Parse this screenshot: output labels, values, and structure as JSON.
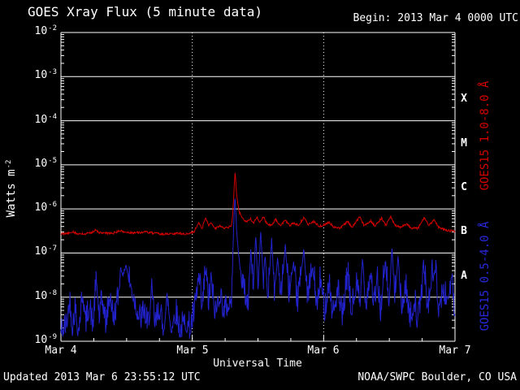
{
  "chart_data": {
    "type": "line",
    "title": "GOES Xray Flux (5 minute data)",
    "begin_label": "Begin: 2013 Mar 4 0000 UTC",
    "xlabel": "Universal Time",
    "ylabel": "Watts m^-2",
    "ylabel_base": "Watts m",
    "ylabel_exp": "-2",
    "y_scale": "log",
    "y_range": [
      1e-09,
      0.01
    ],
    "y_tick_exponents": [
      -2,
      -3,
      -4,
      -5,
      -6,
      -7,
      -8,
      -9
    ],
    "x_range_hours": [
      0,
      72
    ],
    "x_tick_hours": [
      0,
      24,
      48,
      72
    ],
    "x_tick_labels": [
      "Mar 4",
      "Mar 5",
      "Mar 6",
      "Mar 7"
    ],
    "dotted_gridline_hours": [
      24,
      48
    ],
    "minor_x_tick_hours": 6,
    "flare_class_letters": [
      "X",
      "M",
      "C",
      "B",
      "A"
    ],
    "colors": {
      "background": "#000000",
      "axis": "#ffffff",
      "text": "#ffffff"
    },
    "sample_interval_minutes": 5,
    "prng_seed": 42,
    "series": [
      {
        "key": "goes15-long",
        "name": "GOES15 1.0-8.0 Å",
        "color": "#d40000",
        "jitter_up": 0.025,
        "jitter_down": 0.025,
        "jitter_threshold": 1,
        "points": [
          [
            0,
            2.7e-07
          ],
          [
            1.5,
            2.8e-07
          ],
          [
            2.2,
            3.1e-07
          ],
          [
            3,
            2.7e-07
          ],
          [
            4.5,
            2.7e-07
          ],
          [
            5.5,
            2.9e-07
          ],
          [
            6.3,
            3.3e-07
          ],
          [
            7,
            2.9e-07
          ],
          [
            8,
            2.8e-07
          ],
          [
            9.5,
            2.8e-07
          ],
          [
            10.8,
            3.2e-07
          ],
          [
            11.5,
            3e-07
          ],
          [
            12.5,
            2.9e-07
          ],
          [
            14,
            2.9e-07
          ],
          [
            15.5,
            3e-07
          ],
          [
            17,
            2.8e-07
          ],
          [
            18.5,
            2.7e-07
          ],
          [
            20,
            2.7e-07
          ],
          [
            21.5,
            2.8e-07
          ],
          [
            23,
            2.7e-07
          ],
          [
            24.3,
            3e-07
          ],
          [
            25.2,
            5e-07
          ],
          [
            25.8,
            3.6e-07
          ],
          [
            26.4,
            6.3e-07
          ],
          [
            27.0,
            4.2e-07
          ],
          [
            27.4,
            5e-07
          ],
          [
            28.2,
            3.6e-07
          ],
          [
            29.0,
            4.2e-07
          ],
          [
            29.8,
            3.6e-07
          ],
          [
            30.5,
            3.8e-07
          ],
          [
            31.2,
            4.2e-07
          ],
          [
            31.55,
            1.5e-06
          ],
          [
            31.8,
            7.5e-06
          ],
          [
            32.1,
            2.2e-06
          ],
          [
            32.5,
            9e-07
          ],
          [
            33.2,
            6e-07
          ],
          [
            34.0,
            5e-07
          ],
          [
            34.6,
            6.2e-07
          ],
          [
            35.2,
            4.8e-07
          ],
          [
            35.8,
            6.5e-07
          ],
          [
            36.4,
            5e-07
          ],
          [
            37.0,
            6.8e-07
          ],
          [
            37.6,
            4.6e-07
          ],
          [
            38.5,
            4.2e-07
          ],
          [
            39.2,
            5.8e-07
          ],
          [
            40,
            4.2e-07
          ],
          [
            41,
            5.5e-07
          ],
          [
            41.8,
            4.2e-07
          ],
          [
            42.6,
            4.8e-07
          ],
          [
            43.4,
            4.2e-07
          ],
          [
            44.4,
            6.4e-07
          ],
          [
            45.2,
            4.4e-07
          ],
          [
            46.2,
            5.2e-07
          ],
          [
            47.2,
            4e-07
          ],
          [
            48.2,
            4.4e-07
          ],
          [
            49.0,
            5e-07
          ],
          [
            49.8,
            3.9e-07
          ],
          [
            51,
            3.7e-07
          ],
          [
            52.4,
            5.2e-07
          ],
          [
            53.2,
            3.8e-07
          ],
          [
            54.6,
            6.6e-07
          ],
          [
            55.4,
            4.2e-07
          ],
          [
            56.6,
            5.4e-07
          ],
          [
            57.4,
            4.1e-07
          ],
          [
            58.6,
            6.2e-07
          ],
          [
            59.4,
            4.2e-07
          ],
          [
            60.2,
            6.8e-07
          ],
          [
            61,
            4.3e-07
          ],
          [
            62,
            3.9e-07
          ],
          [
            63.2,
            4.6e-07
          ],
          [
            64,
            3.7e-07
          ],
          [
            65.2,
            3.6e-07
          ],
          [
            66.4,
            6.4e-07
          ],
          [
            67.2,
            4.2e-07
          ],
          [
            68.2,
            5.6e-07
          ],
          [
            69,
            3.9e-07
          ],
          [
            70,
            3.4e-07
          ],
          [
            71,
            3.2e-07
          ],
          [
            72,
            3.1e-07
          ]
        ]
      },
      {
        "key": "goes15-short",
        "name": "GOES15 0.5-4.0 Å",
        "color": "#2222cc",
        "jitter_up": 0.45,
        "jitter_down": 0.18,
        "jitter_threshold": 3e-08,
        "points": [
          [
            0,
            1.5e-09
          ],
          [
            1.0,
            2e-09
          ],
          [
            1.6,
            8e-09
          ],
          [
            2.1,
            1.8e-09
          ],
          [
            2.6,
            5e-09
          ],
          [
            3.2,
            1.5e-09
          ],
          [
            4.0,
            1.2e-08
          ],
          [
            4.5,
            2e-09
          ],
          [
            5.2,
            6e-09
          ],
          [
            5.8,
            1.8e-09
          ],
          [
            6.5,
            2.2e-08
          ],
          [
            7.0,
            3e-09
          ],
          [
            7.6,
            8e-09
          ],
          [
            8.2,
            2e-09
          ],
          [
            9.0,
            1.1e-08
          ],
          [
            9.6,
            2.5e-09
          ],
          [
            10.4,
            8e-09
          ],
          [
            10.9,
            4.5e-08
          ],
          [
            11.4,
            3e-08
          ],
          [
            11.9,
            5.5e-08
          ],
          [
            12.4,
            2.5e-08
          ],
          [
            13.0,
            1.2e-08
          ],
          [
            13.8,
            5e-09
          ],
          [
            14.6,
            2.5e-09
          ],
          [
            15.2,
            4.5e-09
          ],
          [
            15.8,
            1.8e-09
          ],
          [
            16.6,
            1e-08
          ],
          [
            17.2,
            2e-09
          ],
          [
            18.0,
            5e-09
          ],
          [
            18.6,
            1.6e-09
          ],
          [
            19.5,
            8e-09
          ],
          [
            20.1,
            1.8e-09
          ],
          [
            21.0,
            4e-09
          ],
          [
            21.8,
            1.5e-09
          ],
          [
            22.8,
            2.5e-09
          ],
          [
            23.6,
            1.6e-09
          ],
          [
            24.4,
            4e-09
          ],
          [
            25.2,
            2.6e-08
          ],
          [
            25.8,
            4e-09
          ],
          [
            26.4,
            4.2e-08
          ],
          [
            27.0,
            6e-09
          ],
          [
            27.4,
            2.2e-08
          ],
          [
            28.2,
            3.5e-09
          ],
          [
            29.0,
            1.1e-08
          ],
          [
            29.8,
            4e-09
          ],
          [
            30.6,
            6e-09
          ],
          [
            31.2,
            8e-09
          ],
          [
            31.55,
            4e-07
          ],
          [
            31.8,
            2.2e-06
          ],
          [
            32.1,
            3e-07
          ],
          [
            32.5,
            8e-08
          ],
          [
            33.0,
            2.5e-08
          ],
          [
            33.6,
            1e-08
          ],
          [
            34.2,
            6e-09
          ],
          [
            34.7,
            1.3e-07
          ],
          [
            35.1,
            1.2e-08
          ],
          [
            35.6,
            2.6e-07
          ],
          [
            36.0,
            1.5e-08
          ],
          [
            36.5,
            3.1e-07
          ],
          [
            37.0,
            2e-08
          ],
          [
            37.3,
            1e-07
          ],
          [
            37.8,
            9e-09
          ],
          [
            38.5,
            2.1e-07
          ],
          [
            39.0,
            1.2e-08
          ],
          [
            39.6,
            8e-08
          ],
          [
            40.2,
            8e-09
          ],
          [
            41.0,
            1.6e-07
          ],
          [
            41.6,
            1e-08
          ],
          [
            42.5,
            5.5e-08
          ],
          [
            43.2,
            6e-09
          ],
          [
            44.4,
            1.3e-07
          ],
          [
            45.0,
            8e-09
          ],
          [
            46.0,
            4.5e-08
          ],
          [
            46.8,
            5e-09
          ],
          [
            47.4,
            2.2e-08
          ],
          [
            48.2,
            4e-09
          ],
          [
            49.0,
            2.2e-08
          ],
          [
            49.6,
            3.5e-09
          ],
          [
            50.6,
            1.2e-08
          ],
          [
            51.4,
            2.5e-09
          ],
          [
            52.4,
            3.2e-08
          ],
          [
            53.0,
            4e-09
          ],
          [
            54.0,
            1.6e-08
          ],
          [
            54.7,
            6e-09
          ],
          [
            55.1,
            8.5e-08
          ],
          [
            55.7,
            6e-09
          ],
          [
            56.6,
            3.5e-08
          ],
          [
            57.2,
            5e-09
          ],
          [
            57.8,
            2.2e-08
          ],
          [
            58.4,
            4e-09
          ],
          [
            59.3,
            6.5e-08
          ],
          [
            59.9,
            6e-09
          ],
          [
            60.5,
            1.3e-07
          ],
          [
            61.0,
            8e-09
          ],
          [
            61.6,
            9.5e-08
          ],
          [
            62.2,
            4e-09
          ],
          [
            63.0,
            1.6e-08
          ],
          [
            63.8,
            2.5e-09
          ],
          [
            64.6,
            8e-09
          ],
          [
            65.2,
            2e-09
          ],
          [
            66.4,
            4.2e-08
          ],
          [
            67.0,
            4e-09
          ],
          [
            67.6,
            2.2e-08
          ],
          [
            68.4,
            3.8e-08
          ],
          [
            69.0,
            5e-09
          ],
          [
            69.8,
            1.1e-08
          ],
          [
            70.6,
            8e-09
          ],
          [
            71.4,
            2.2e-08
          ],
          [
            72,
            3e-09
          ]
        ]
      }
    ]
  },
  "footer": {
    "updated": "Updated 2013 Mar 6 23:55:12 UTC",
    "credit": "NOAA/SWPC Boulder, CO USA"
  }
}
